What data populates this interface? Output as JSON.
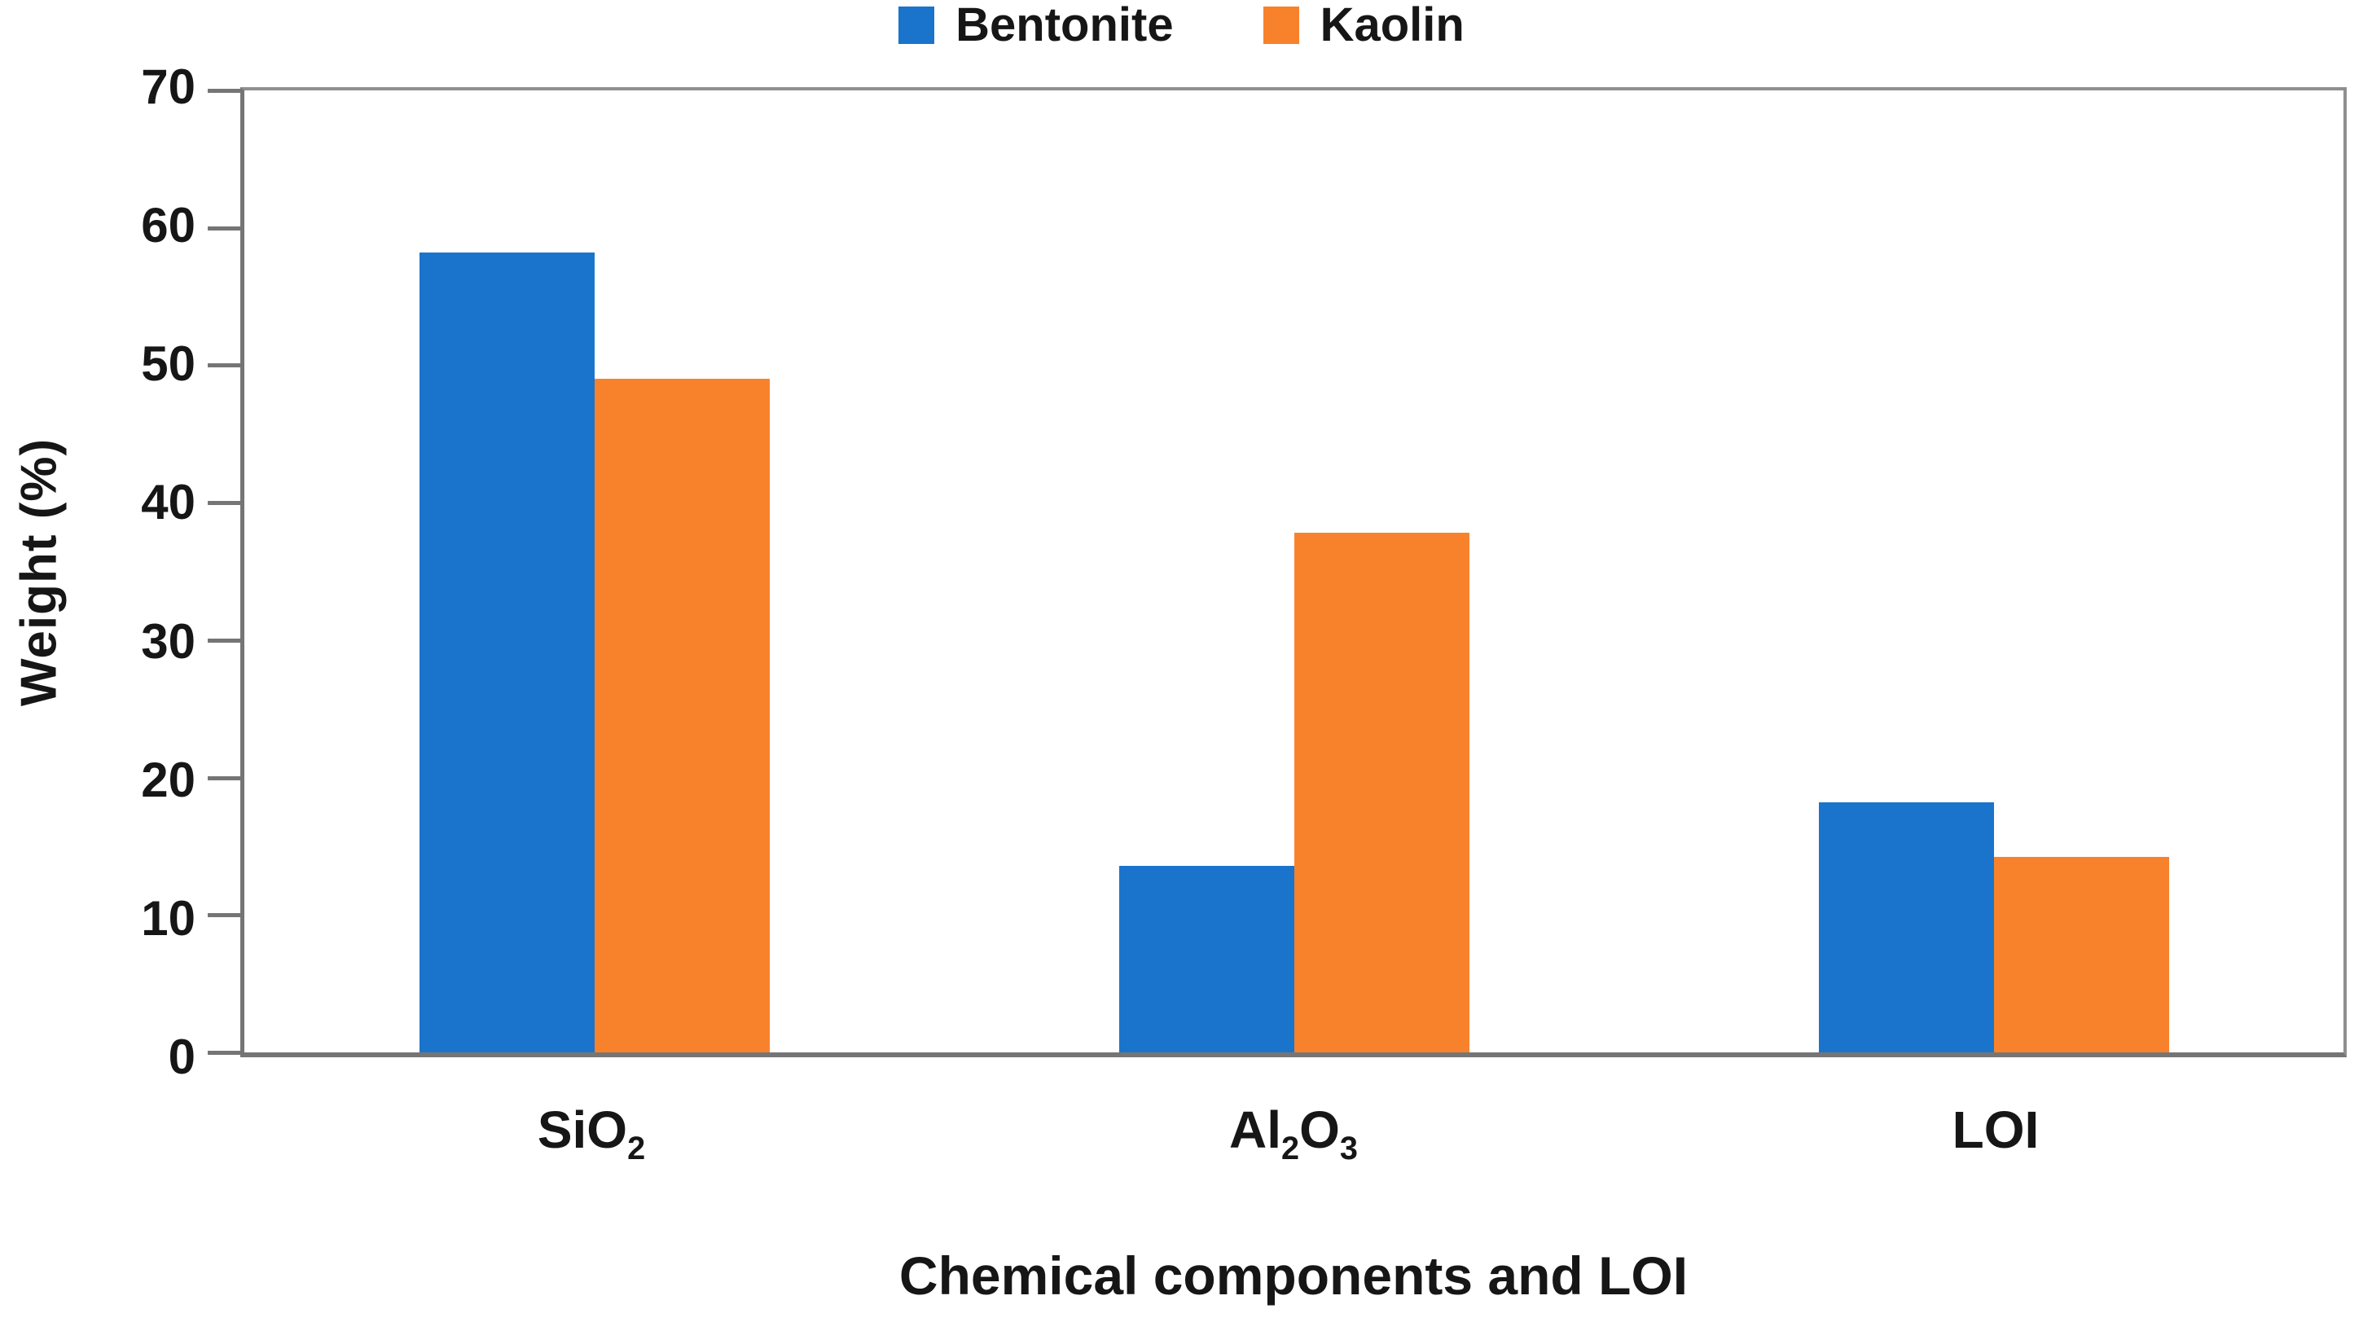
{
  "chart_data": {
    "type": "bar",
    "title": "",
    "xlabel": "Chemical components and LOI",
    "ylabel": "Weight (%)",
    "ylim": [
      0,
      70
    ],
    "ytick_step": 10,
    "grid": false,
    "legend_position": "top-center",
    "categories": [
      {
        "name": "SiO2",
        "parts": [
          {
            "text": "SiO"
          },
          {
            "text": "2",
            "sub": true
          }
        ]
      },
      {
        "name": "Al2O3",
        "parts": [
          {
            "text": "Al"
          },
          {
            "text": "2",
            "sub": true
          },
          {
            "text": "O"
          },
          {
            "text": "3",
            "sub": true
          }
        ]
      },
      {
        "name": "LOI",
        "parts": [
          {
            "text": "LOI"
          }
        ]
      }
    ],
    "series": [
      {
        "name": "Bentonite",
        "color": "#1B74CB",
        "values": [
          58.2,
          13.6,
          18.2
        ]
      },
      {
        "name": "Kaolin",
        "color": "#F8822C",
        "values": [
          49.0,
          37.8,
          14.2
        ]
      }
    ]
  },
  "colors": {
    "axis_line": "#757575",
    "plot_border": "#8F8F8F",
    "text": "#161616",
    "background": "#FFFFFF"
  }
}
